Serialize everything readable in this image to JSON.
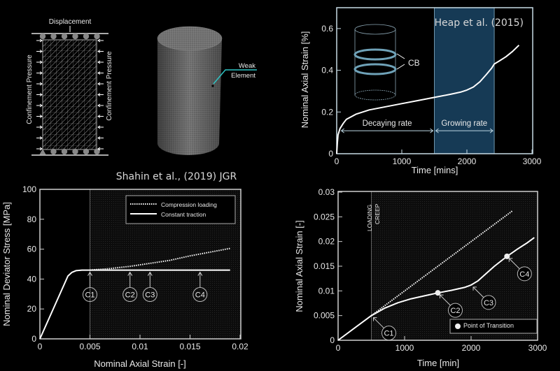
{
  "diagram": {
    "displacement_label": "Displacement",
    "confinement_left": "Confinement Pressure",
    "confinement_right": "Confinement Pressure",
    "weak_element_label": "Weak Element",
    "weak_element_line1": "Weak",
    "weak_element_line2": "Element",
    "accent_color": "#2ec4c4"
  },
  "chart_data": [
    {
      "id": "heap",
      "type": "line",
      "title": "Heap et al. (2015)",
      "xlabel": "Time [mins]",
      "ylabel": "Nominal Axial Strain [%]",
      "xlim": [
        0,
        3000
      ],
      "ylim": [
        0,
        0.7
      ],
      "xticks": [
        "0",
        "1000",
        "2000",
        "3000"
      ],
      "yticks": [
        "0",
        "0.2",
        "0.4",
        "0.6"
      ],
      "xtick_values": [
        0,
        1000,
        2000,
        3000
      ],
      "ytick_values": [
        0,
        0.2,
        0.4,
        0.6
      ],
      "shaded_region": [
        1500,
        2420
      ],
      "shade_color": "#163a55",
      "inset_label": "CB",
      "annotations": [
        {
          "text": "Decaying rate",
          "x_from": 50,
          "x_to": 1500,
          "y": 0.11
        },
        {
          "text": "Growing rate",
          "x_from": 1500,
          "x_to": 2420,
          "y": 0.11
        }
      ],
      "series": [
        {
          "x": [
            0,
            10,
            20,
            50,
            100,
            150,
            300,
            500,
            750,
            1000,
            1250,
            1500,
            1750,
            1900,
            2000,
            2100,
            2200,
            2300,
            2380,
            2420,
            2500,
            2600,
            2700,
            2800
          ],
          "y": [
            0,
            0.05,
            0.09,
            0.12,
            0.145,
            0.165,
            0.19,
            0.21,
            0.225,
            0.24,
            0.255,
            0.27,
            0.285,
            0.295,
            0.305,
            0.32,
            0.345,
            0.38,
            0.41,
            0.43,
            0.445,
            0.465,
            0.49,
            0.52
          ]
        }
      ]
    },
    {
      "id": "shahin",
      "type": "line",
      "title": "Shahin et al., (2019) JGR",
      "xlabel": "Nominal Axial Strain [-]",
      "ylabel": "Nominal Deviator Stress [MPa]",
      "xlim": [
        0,
        0.02
      ],
      "ylim": [
        0,
        100
      ],
      "xticks": [
        "0",
        "0.005",
        "0.01",
        "0.015",
        "0.02"
      ],
      "yticks": [
        "0",
        "20",
        "40",
        "60",
        "80",
        "100"
      ],
      "xtick_values": [
        0,
        0.005,
        0.01,
        0.015,
        0.02
      ],
      "ytick_values": [
        0,
        20,
        40,
        60,
        80,
        100
      ],
      "shaded_from": 0.005,
      "legend_position": "top-right",
      "series": [
        {
          "name": "Compression loading",
          "style": "dotted",
          "x": [
            0.005,
            0.007,
            0.009,
            0.011,
            0.013,
            0.015,
            0.017,
            0.019
          ],
          "y": [
            46,
            47,
            48.5,
            50.5,
            52.5,
            55.5,
            58,
            60.5
          ]
        },
        {
          "name": "Constant traction",
          "style": "solid",
          "x": [
            0,
            0.0028,
            0.0032,
            0.0036,
            0.0042,
            0.005,
            0.019
          ],
          "y": [
            0,
            42,
            44.5,
            45.6,
            46,
            46,
            46
          ]
        }
      ],
      "markers": [
        {
          "label": "C1",
          "x": 0.005,
          "y": 46
        },
        {
          "label": "C2",
          "x": 0.009,
          "y": 46
        },
        {
          "label": "C3",
          "x": 0.011,
          "y": 46
        },
        {
          "label": "C4",
          "x": 0.016,
          "y": 46
        }
      ]
    },
    {
      "id": "creep",
      "type": "line",
      "xlabel": "Time [min]",
      "ylabel": "Nominal Axial Strain [-]",
      "xlim": [
        0,
        3000
      ],
      "ylim": [
        0,
        0.03
      ],
      "xticks": [
        "0",
        "1000",
        "2000",
        "3000"
      ],
      "yticks": [
        "0",
        "0.005",
        "0.01",
        "0.015",
        "0.02",
        "0.025",
        "0.03"
      ],
      "xtick_values": [
        0,
        1000,
        2000,
        3000
      ],
      "ytick_values": [
        0,
        0.005,
        0.01,
        0.015,
        0.02,
        0.025,
        0.03
      ],
      "phase_boundary": 500,
      "phase_labels": [
        "LOADING",
        "CREEP"
      ],
      "legend_position": "bottom-right",
      "legend_label": "Point of Transition",
      "series": [
        {
          "style": "dotted",
          "x": [
            500,
            2620
          ],
          "y": [
            0.005,
            0.0262
          ]
        },
        {
          "style": "solid",
          "x": [
            0,
            500,
            700,
            900,
            1100,
            1300,
            1500,
            1700,
            1900,
            2000,
            2100,
            2200,
            2350,
            2540,
            2700,
            2850,
            2950
          ],
          "y": [
            0,
            0.005,
            0.0065,
            0.0076,
            0.0084,
            0.009,
            0.0096,
            0.0101,
            0.0107,
            0.0112,
            0.012,
            0.0132,
            0.015,
            0.017,
            0.0185,
            0.0198,
            0.0208
          ]
        }
      ],
      "transition_points": [
        {
          "x": 1500,
          "y": 0.0096
        },
        {
          "x": 2540,
          "y": 0.017
        }
      ],
      "markers": [
        {
          "label": "C1",
          "x": 500,
          "y": 0.005
        },
        {
          "label": "C2",
          "x": 1500,
          "y": 0.0096
        },
        {
          "label": "C3",
          "x": 2000,
          "y": 0.0112
        },
        {
          "label": "C4",
          "x": 2540,
          "y": 0.017
        }
      ]
    }
  ]
}
